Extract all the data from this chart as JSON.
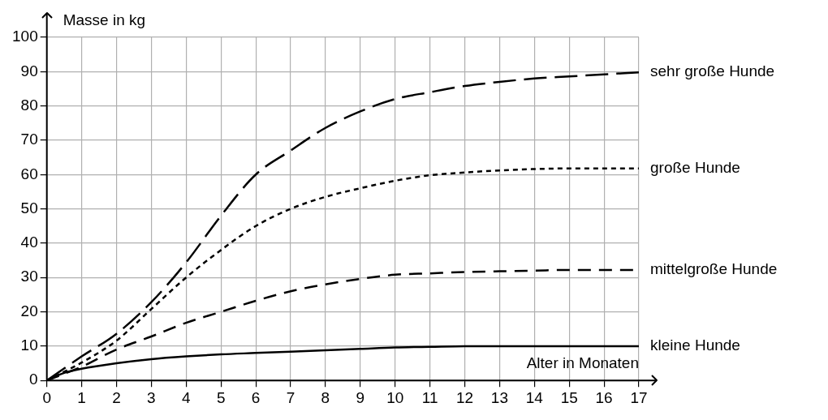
{
  "chart_data": {
    "type": "line",
    "xlabel": "Alter in Monaten",
    "ylabel": "Masse in kg",
    "xlim": [
      0,
      17
    ],
    "xticks": [
      0,
      1,
      2,
      3,
      4,
      5,
      6,
      7,
      8,
      9,
      10,
      11,
      12,
      13,
      14,
      15,
      16,
      17
    ],
    "ylim": [
      0,
      100
    ],
    "yticks": [
      0,
      10,
      20,
      30,
      40,
      50,
      60,
      70,
      80,
      90,
      100
    ],
    "grid": true,
    "marker": "none",
    "series": [
      {
        "name": "sehr große Hunde",
        "color": "#000000",
        "line_style": "dashed",
        "x": [
          0,
          1,
          2,
          3,
          4,
          5,
          6,
          7,
          8,
          9,
          10,
          11,
          12,
          13,
          14,
          15,
          16,
          17
        ],
        "values": [
          0,
          7,
          13.6,
          22.8,
          34.4,
          48,
          60,
          67,
          73.6,
          78.4,
          82,
          84,
          85.8,
          87,
          88,
          88.6,
          89.2,
          89.8
        ]
      },
      {
        "name": "große Hunde",
        "color": "#000000",
        "line_style": "dotted",
        "x": [
          0,
          1,
          2,
          3,
          4,
          5,
          6,
          7,
          8,
          9,
          10,
          11,
          12,
          13,
          14,
          15,
          16,
          17
        ],
        "values": [
          0,
          5.2,
          11.6,
          20.8,
          30,
          38,
          45,
          50,
          53.5,
          56,
          58.2,
          59.8,
          60.6,
          61.2,
          61.6,
          61.8,
          61.8,
          61.8
        ]
      },
      {
        "name": "mittelgroße Hunde",
        "color": "#000000",
        "line_style": "dashed",
        "x": [
          0,
          1,
          2,
          3,
          4,
          5,
          6,
          7,
          8,
          9,
          10,
          11,
          12,
          13,
          14,
          15,
          16,
          17
        ],
        "values": [
          0,
          4,
          9,
          12.8,
          16.8,
          20,
          23.2,
          26,
          28,
          29.6,
          30.8,
          31.2,
          31.6,
          31.8,
          32,
          32.2,
          32.2,
          32.2
        ]
      },
      {
        "name": "kleine Hunde",
        "color": "#000000",
        "line_style": "solid",
        "x": [
          0,
          0.5,
          1,
          2,
          3,
          4,
          5,
          6,
          7,
          8,
          9,
          10,
          11,
          12,
          13,
          14,
          15,
          16,
          17
        ],
        "values": [
          0,
          2.2,
          3.4,
          5,
          6.2,
          7,
          7.6,
          8,
          8.4,
          8.8,
          9.2,
          9.6,
          9.8,
          10,
          10,
          10,
          10,
          10,
          10
        ]
      }
    ]
  }
}
